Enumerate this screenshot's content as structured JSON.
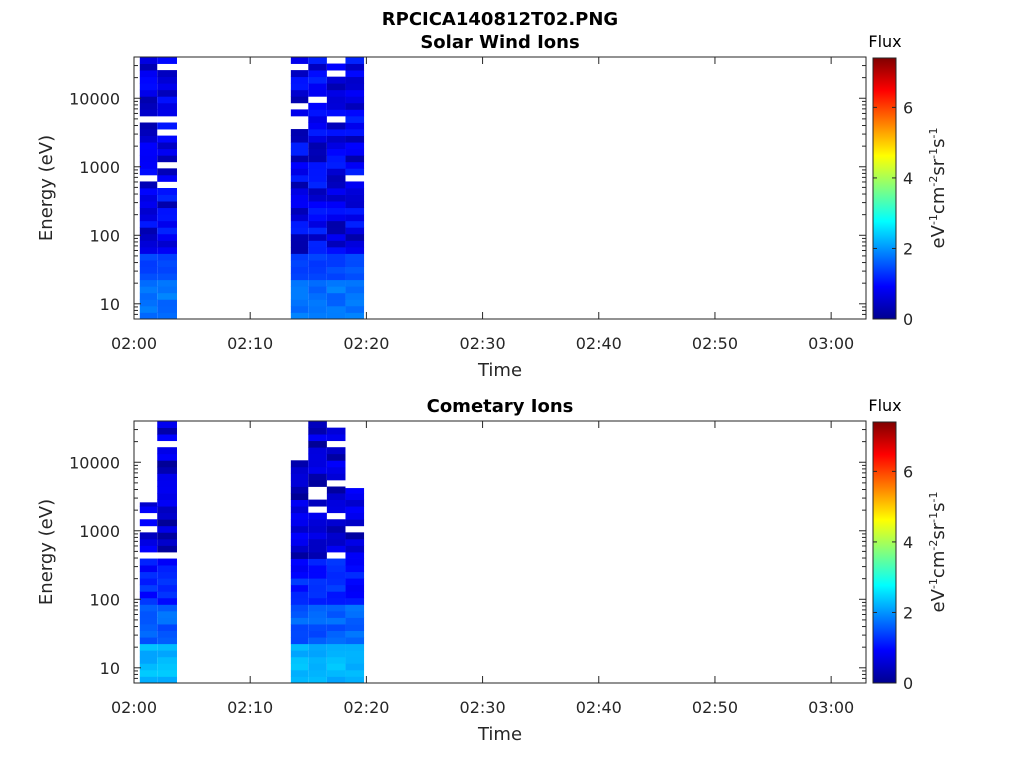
{
  "figure": {
    "title": "RPCICA140812T02.PNG"
  },
  "colors": {
    "background": "#ffffff",
    "axes": "#262626",
    "colormap": "jet"
  },
  "chart_data": [
    {
      "type": "heatmap",
      "title": "Solar Wind Ions",
      "xlabel": "Time",
      "ylabel": "Energy (eV)",
      "xlim": [
        "02:00",
        "03:03"
      ],
      "x_ticks": [
        "02:00",
        "02:10",
        "02:20",
        "02:30",
        "02:40",
        "02:50",
        "03:00"
      ],
      "y_scale": "log",
      "ylim": [
        6,
        40000
      ],
      "y_ticks": [
        "10",
        "100",
        "1000",
        "10000"
      ],
      "colorbar": {
        "title": "Flux",
        "label_base": "eV",
        "label_exp1": "-1",
        "label_mid1": "cm",
        "label_exp2": "-2",
        "label_mid2": "sr",
        "label_exp3": "-1",
        "label_mid3": "s",
        "label_exp4": "-1",
        "range": [
          0,
          7.4
        ],
        "ticks": [
          "0",
          "2",
          "4",
          "6"
        ]
      },
      "time_columns": [
        {
          "start": "02:00.5",
          "end": "02:02.0",
          "emin": 6,
          "emax": 40000
        },
        {
          "start": "02:02.0",
          "end": "02:03.7",
          "emin": 6,
          "emax": 40000
        },
        {
          "start": "02:13.5",
          "end": "02:15.0",
          "emin": 6,
          "emax": 40000
        },
        {
          "start": "02:15.0",
          "end": "02:16.6",
          "emin": 6,
          "emax": 40000
        },
        {
          "start": "02:16.6",
          "end": "02:18.2",
          "emin": 6,
          "emax": 40000
        },
        {
          "start": "02:18.2",
          "end": "02:19.8",
          "emin": 6,
          "emax": 40000
        }
      ],
      "flux_summary": "Low flux (~0.3-1.2) at high energies rising to ~1.5-1.9 below ~50 eV"
    },
    {
      "type": "heatmap",
      "title": "Cometary Ions",
      "xlabel": "Time",
      "ylabel": "Energy (eV)",
      "xlim": [
        "02:00",
        "03:03"
      ],
      "x_ticks": [
        "02:00",
        "02:10",
        "02:20",
        "02:30",
        "02:40",
        "02:50",
        "03:00"
      ],
      "y_scale": "log",
      "ylim": [
        6,
        40000
      ],
      "y_ticks": [
        "10",
        "100",
        "1000",
        "10000"
      ],
      "colorbar": {
        "title": "Flux",
        "label_base": "eV",
        "label_exp1": "-1",
        "label_mid1": "cm",
        "label_exp2": "-2",
        "label_mid2": "sr",
        "label_exp3": "-1",
        "label_mid3": "s",
        "label_exp4": "-1",
        "range": [
          0,
          7.4
        ],
        "ticks": [
          "0",
          "2",
          "4",
          "6"
        ]
      },
      "time_columns": [
        {
          "start": "02:00.5",
          "end": "02:02.0",
          "emin": 6,
          "emax": 2600
        },
        {
          "start": "02:02.0",
          "end": "02:03.7",
          "emin": 6,
          "emax": 40000
        },
        {
          "start": "02:13.5",
          "end": "02:15.0",
          "emin": 6,
          "emax": 11000
        },
        {
          "start": "02:15.0",
          "end": "02:16.6",
          "emin": 6,
          "emax": 40000
        },
        {
          "start": "02:16.6",
          "end": "02:18.2",
          "emin": 6,
          "emax": 32000
        },
        {
          "start": "02:18.2",
          "end": "02:19.8",
          "emin": 6,
          "emax": 4200
        }
      ],
      "flux_summary": "Low flux (~0.2-1.0) at high energies rising to ~2.1-2.4 below ~25 eV"
    }
  ]
}
